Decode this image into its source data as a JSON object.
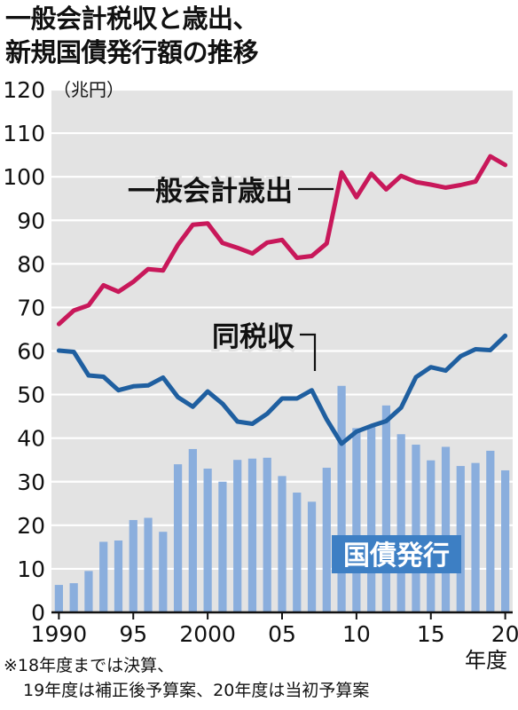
{
  "title_lines": [
    "一般会計税収と歳出、",
    "新規国債発行額の推移"
  ],
  "unit_label": "（兆円）",
  "x_unit_label": "年度",
  "footnote_lines": [
    "※18年度までは決算、",
    "19年度は補正後予算案、20年度は当初予算案"
  ],
  "colors": {
    "expenditure": "#c8185a",
    "tax_revenue": "#1f5fa0",
    "bonds": "#8aaedd",
    "bond_label_bg": "#3d7fc4",
    "plot_bg": "#e3e3e3"
  },
  "chart_data": {
    "type": "bar+line",
    "x": [
      1990,
      1991,
      1992,
      1993,
      1994,
      1995,
      1996,
      1997,
      1998,
      1999,
      2000,
      2001,
      2002,
      2003,
      2004,
      2005,
      2006,
      2007,
      2008,
      2009,
      2010,
      2011,
      2012,
      2013,
      2014,
      2015,
      2016,
      2017,
      2018,
      2019,
      2020
    ],
    "xticks": [
      1990,
      1995,
      2000,
      2005,
      2010,
      2015,
      2020
    ],
    "xtick_labels": [
      "1990",
      "95",
      "2000",
      "05",
      "10",
      "15",
      "20"
    ],
    "ylim": [
      0,
      120
    ],
    "yticks": [
      0,
      10,
      20,
      30,
      40,
      50,
      60,
      70,
      80,
      90,
      100,
      110,
      120
    ],
    "grid": true,
    "series": [
      {
        "name": "一般会計歳出",
        "kind": "line",
        "values": [
          66.2,
          69.3,
          70.5,
          75.1,
          73.6,
          75.9,
          78.8,
          78.5,
          84.4,
          89.0,
          89.3,
          84.8,
          83.7,
          82.4,
          84.9,
          85.5,
          81.4,
          81.8,
          84.7,
          101.0,
          95.3,
          100.7,
          97.1,
          100.2,
          98.8,
          98.2,
          97.5,
          98.1,
          98.9,
          104.7,
          102.7
        ]
      },
      {
        "name": "同税収",
        "kind": "line",
        "values": [
          60.1,
          59.8,
          54.4,
          54.1,
          51.0,
          51.9,
          52.1,
          53.9,
          49.4,
          47.2,
          50.7,
          47.9,
          43.8,
          43.3,
          45.6,
          49.1,
          49.1,
          51.0,
          44.3,
          38.7,
          41.5,
          42.8,
          43.9,
          47.0,
          54.0,
          56.3,
          55.5,
          58.8,
          60.4,
          60.2,
          63.5
        ]
      },
      {
        "name": "国債発行",
        "kind": "bar",
        "values": [
          6.3,
          6.7,
          9.5,
          16.2,
          16.5,
          21.2,
          21.7,
          18.5,
          34.0,
          37.5,
          33.0,
          30.0,
          35.0,
          35.3,
          35.5,
          31.3,
          27.5,
          25.4,
          33.2,
          52.0,
          42.3,
          42.8,
          47.5,
          40.9,
          38.5,
          34.9,
          38.0,
          33.6,
          34.3,
          37.1,
          32.6
        ]
      }
    ]
  }
}
